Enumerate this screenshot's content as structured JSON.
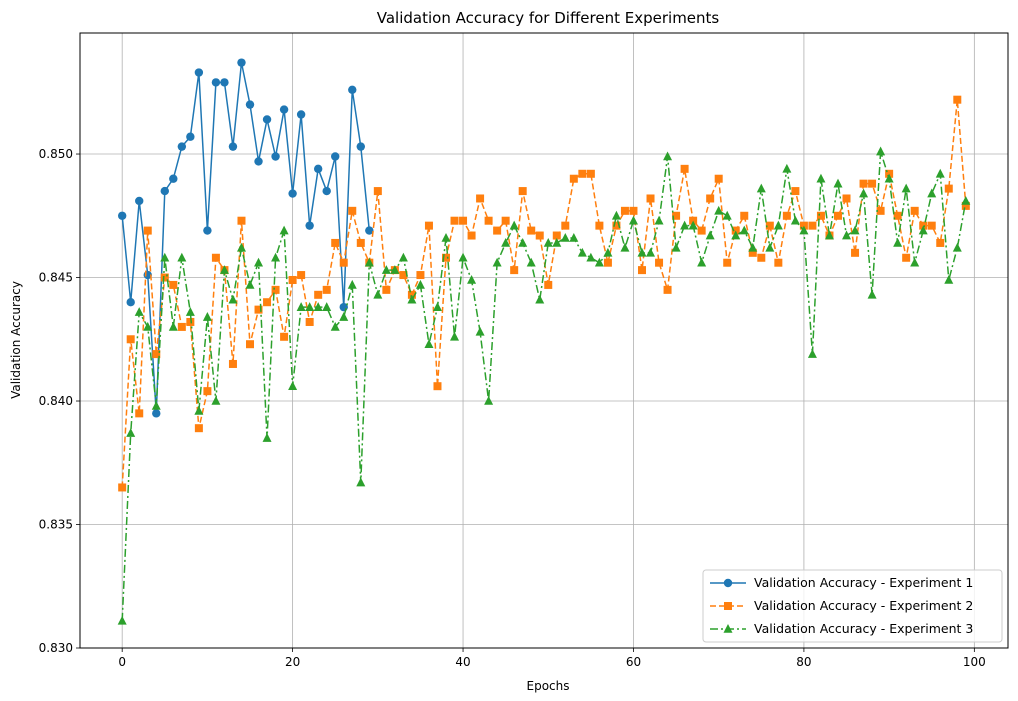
{
  "chart_data": {
    "type": "line",
    "title": "Validation Accuracy for Different Experiments",
    "xlabel": "Epochs",
    "ylabel": "Validation Accuracy",
    "xlim": [
      -4.95,
      103.95
    ],
    "ylim": [
      0.83,
      0.8549
    ],
    "x_ticks": [
      0,
      20,
      40,
      60,
      80,
      100
    ],
    "y_ticks": [
      0.83,
      0.835,
      0.84,
      0.845,
      0.85
    ],
    "x_tick_labels": [
      "0",
      "20",
      "40",
      "60",
      "80",
      "100"
    ],
    "y_tick_labels": [
      "0.830",
      "0.835",
      "0.840",
      "0.845",
      "0.850"
    ],
    "grid": true,
    "legend_position": "bottom-right",
    "series": [
      {
        "name": "Validation Accuracy - Experiment 1",
        "color": "#1f77b4",
        "marker": "circle",
        "line_style": "solid",
        "x_start": 0,
        "values": [
          0.8475,
          0.844,
          0.8481,
          0.8451,
          0.8395,
          0.8485,
          0.849,
          0.8503,
          0.8507,
          0.8533,
          0.8469,
          0.8529,
          0.8529,
          0.8503,
          0.8537,
          0.852,
          0.8497,
          0.8514,
          0.8499,
          0.8518,
          0.8484,
          0.8516,
          0.8471,
          0.8494,
          0.8485,
          0.8499,
          0.8438,
          0.8526,
          0.8503,
          0.8469
        ]
      },
      {
        "name": "Validation Accuracy - Experiment 2",
        "color": "#ff7f0e",
        "marker": "square",
        "line_style": "dashed",
        "x_start": 0,
        "values": [
          0.8365,
          0.8425,
          0.8395,
          0.8469,
          0.8419,
          0.845,
          0.8447,
          0.843,
          0.8432,
          0.8389,
          0.8404,
          0.8458,
          0.8453,
          0.8415,
          0.8473,
          0.8423,
          0.8437,
          0.844,
          0.8445,
          0.8426,
          0.8449,
          0.8451,
          0.8432,
          0.8443,
          0.8445,
          0.8464,
          0.8456,
          0.8477,
          0.8464,
          0.8456,
          0.8485,
          0.8445,
          0.8453,
          0.8451,
          0.8443,
          0.8451,
          0.8471,
          0.8406,
          0.8458,
          0.8473,
          0.8473,
          0.8467,
          0.8482,
          0.8473,
          0.8469,
          0.8473,
          0.8453,
          0.8485,
          0.8469,
          0.8467,
          0.8447,
          0.8467,
          0.8471,
          0.849,
          0.8492,
          0.8492,
          0.8471,
          0.8456,
          0.8471,
          0.8477,
          0.8477,
          0.8453,
          0.8482,
          0.8456,
          0.8445,
          0.8475,
          0.8494,
          0.8473,
          0.8469,
          0.8482,
          0.849,
          0.8456,
          0.8469,
          0.8475,
          0.846,
          0.8458,
          0.8471,
          0.8456,
          0.8475,
          0.8485,
          0.8471,
          0.8471,
          0.8475,
          0.8467,
          0.8475,
          0.8482,
          0.846,
          0.8488,
          0.8488,
          0.8477,
          0.8492,
          0.8475,
          0.8458,
          0.8477,
          0.8471,
          0.8471,
          0.8464,
          0.8486,
          0.8522,
          0.8479
        ]
      },
      {
        "name": "Validation Accuracy - Experiment 3",
        "color": "#2ca02c",
        "marker": "triangle",
        "line_style": "dashdot",
        "x_start": 0,
        "values": [
          0.8311,
          0.8387,
          0.8436,
          0.843,
          0.8398,
          0.8458,
          0.843,
          0.8458,
          0.8436,
          0.8396,
          0.8434,
          0.84,
          0.8453,
          0.8441,
          0.8462,
          0.8447,
          0.8456,
          0.8385,
          0.8458,
          0.8469,
          0.8406,
          0.8438,
          0.8438,
          0.8438,
          0.8438,
          0.843,
          0.8434,
          0.8447,
          0.8367,
          0.8456,
          0.8443,
          0.8453,
          0.8453,
          0.8458,
          0.8441,
          0.8447,
          0.8423,
          0.8438,
          0.8466,
          0.8426,
          0.8458,
          0.8449,
          0.8428,
          0.84,
          0.8456,
          0.8464,
          0.8471,
          0.8464,
          0.8456,
          0.8441,
          0.8464,
          0.8464,
          0.8466,
          0.8466,
          0.846,
          0.8458,
          0.8456,
          0.846,
          0.8475,
          0.8462,
          0.8473,
          0.846,
          0.846,
          0.8473,
          0.8499,
          0.8462,
          0.8471,
          0.8471,
          0.8456,
          0.8467,
          0.8477,
          0.8475,
          0.8467,
          0.8469,
          0.8462,
          0.8486,
          0.8462,
          0.8471,
          0.8494,
          0.8473,
          0.8469,
          0.8419,
          0.849,
          0.8467,
          0.8488,
          0.8467,
          0.8469,
          0.8484,
          0.8443,
          0.8501,
          0.849,
          0.8464,
          0.8486,
          0.8456,
          0.8469,
          0.8484,
          0.8492,
          0.8449,
          0.8462,
          0.8481
        ]
      }
    ]
  }
}
